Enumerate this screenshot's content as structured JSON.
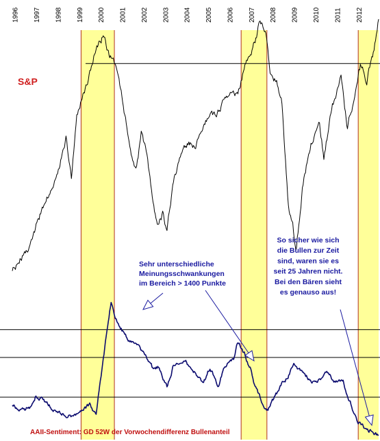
{
  "chart_data": {
    "type": "line",
    "title": "",
    "years": [
      "1996",
      "1997",
      "1998",
      "1999",
      "2000",
      "2001",
      "2002",
      "2003",
      "2004",
      "2005",
      "2006",
      "2007",
      "2008",
      "2009",
      "2010",
      "2011",
      "2012"
    ],
    "x_range": [
      1996,
      2013.05
    ],
    "highlight_periods": [
      {
        "start": 1999.2,
        "end": 2000.75
      },
      {
        "start": 2006.65,
        "end": 2007.85
      },
      {
        "start": 2012.1,
        "end": 2013.05
      }
    ],
    "series": [
      {
        "name": "S&P",
        "color": "#000000",
        "points": [
          [
            1996.0,
            640
          ],
          [
            1996.5,
            710
          ],
          [
            1997.0,
            780
          ],
          [
            1997.5,
            900
          ],
          [
            1998.0,
            980
          ],
          [
            1998.5,
            1130
          ],
          [
            1998.75,
            990
          ],
          [
            1999.0,
            1230
          ],
          [
            1999.5,
            1330
          ],
          [
            1999.9,
            1460
          ],
          [
            2000.2,
            1500
          ],
          [
            2000.5,
            1440
          ],
          [
            2000.8,
            1410
          ],
          [
            2001.0,
            1330
          ],
          [
            2001.3,
            1180
          ],
          [
            2001.6,
            1040
          ],
          [
            2001.75,
            1000
          ],
          [
            2002.0,
            1140
          ],
          [
            2002.3,
            1050
          ],
          [
            2002.55,
            880
          ],
          [
            2002.75,
            810
          ],
          [
            2003.0,
            860
          ],
          [
            2003.2,
            800
          ],
          [
            2003.5,
            980
          ],
          [
            2004.0,
            1120
          ],
          [
            2004.5,
            1100
          ],
          [
            2005.0,
            1190
          ],
          [
            2005.5,
            1220
          ],
          [
            2006.0,
            1280
          ],
          [
            2006.5,
            1290
          ],
          [
            2006.9,
            1410
          ],
          [
            2007.3,
            1480
          ],
          [
            2007.5,
            1550
          ],
          [
            2007.8,
            1530
          ],
          [
            2008.0,
            1380
          ],
          [
            2008.3,
            1330
          ],
          [
            2008.55,
            1250
          ],
          [
            2008.85,
            880
          ],
          [
            2009.05,
            820
          ],
          [
            2009.2,
            710
          ],
          [
            2009.5,
            950
          ],
          [
            2009.9,
            1110
          ],
          [
            2010.3,
            1180
          ],
          [
            2010.5,
            1060
          ],
          [
            2010.9,
            1250
          ],
          [
            2011.3,
            1350
          ],
          [
            2011.6,
            1170
          ],
          [
            2011.9,
            1280
          ],
          [
            2012.2,
            1390
          ],
          [
            2012.5,
            1340
          ],
          [
            2012.8,
            1440
          ],
          [
            2013.05,
            1560
          ]
        ]
      },
      {
        "name": "AAII-Sentiment",
        "color": "#0a0a6e",
        "points": [
          [
            1996.0,
            2.0
          ],
          [
            1996.4,
            -1.0
          ],
          [
            1996.8,
            1.0
          ],
          [
            1997.1,
            7.0
          ],
          [
            1997.5,
            4.0
          ],
          [
            1997.9,
            0.0
          ],
          [
            1998.3,
            -2.0
          ],
          [
            1998.8,
            -4.0
          ],
          [
            1999.2,
            0.0
          ],
          [
            1999.6,
            2.0
          ],
          [
            1999.9,
            -2.0
          ],
          [
            2000.1,
            14.0
          ],
          [
            2000.4,
            40.0
          ],
          [
            2000.6,
            54.0
          ],
          [
            2000.8,
            47.0
          ],
          [
            2001.1,
            40.0
          ],
          [
            2001.4,
            34.0
          ],
          [
            2001.8,
            33.0
          ],
          [
            2002.2,
            27.0
          ],
          [
            2002.5,
            21.0
          ],
          [
            2002.8,
            21.0
          ],
          [
            2003.2,
            12.0
          ],
          [
            2003.5,
            22.0
          ],
          [
            2004.0,
            25.0
          ],
          [
            2004.5,
            18.0
          ],
          [
            2004.9,
            13.0
          ],
          [
            2005.2,
            21.0
          ],
          [
            2005.6,
            12.0
          ],
          [
            2005.9,
            22.0
          ],
          [
            2006.3,
            26.0
          ],
          [
            2006.5,
            34.0
          ],
          [
            2006.8,
            28.0
          ],
          [
            2007.1,
            20.0
          ],
          [
            2007.3,
            11.0
          ],
          [
            2007.6,
            4.0
          ],
          [
            2007.9,
            0.0
          ],
          [
            2008.2,
            6.0
          ],
          [
            2008.5,
            12.0
          ],
          [
            2008.8,
            16.0
          ],
          [
            2009.1,
            22.0
          ],
          [
            2009.4,
            20.0
          ],
          [
            2009.8,
            15.0
          ],
          [
            2010.2,
            13.0
          ],
          [
            2010.6,
            19.0
          ],
          [
            2011.0,
            14.0
          ],
          [
            2011.4,
            13.0
          ],
          [
            2011.8,
            2.0
          ],
          [
            2012.1,
            -7.0
          ],
          [
            2012.4,
            -10.0
          ],
          [
            2012.7,
            -11.0
          ],
          [
            2013.05,
            -13.0
          ]
        ]
      }
    ],
    "sp_reference_level": 1400,
    "sentiment_reference_levels": [
      40,
      26,
      6
    ],
    "annotations": {
      "sp_label": "S&P",
      "note_middle": [
        "Sehr unterschiedliche",
        "Meinungsschwankungen",
        "im Bereich > 1400 Punkte"
      ],
      "note_right": [
        "So sicher wie sich",
        "die Bullen zur Zeit",
        "sind, waren sie es",
        "seit 25 Jahren nicht.",
        "Bei den Bären sieht",
        "es genauso aus!"
      ],
      "caption": "AAII-Sentiment: GD 52W der Vorwochendifferenz Bullenanteil"
    },
    "colors": {
      "highlight": "#ffff99",
      "highlight_border": "#b03020",
      "reference_line": "#000000",
      "sp_label": "#d02020",
      "note_text": "#1a1aa0",
      "caption_text": "#c01010"
    }
  }
}
